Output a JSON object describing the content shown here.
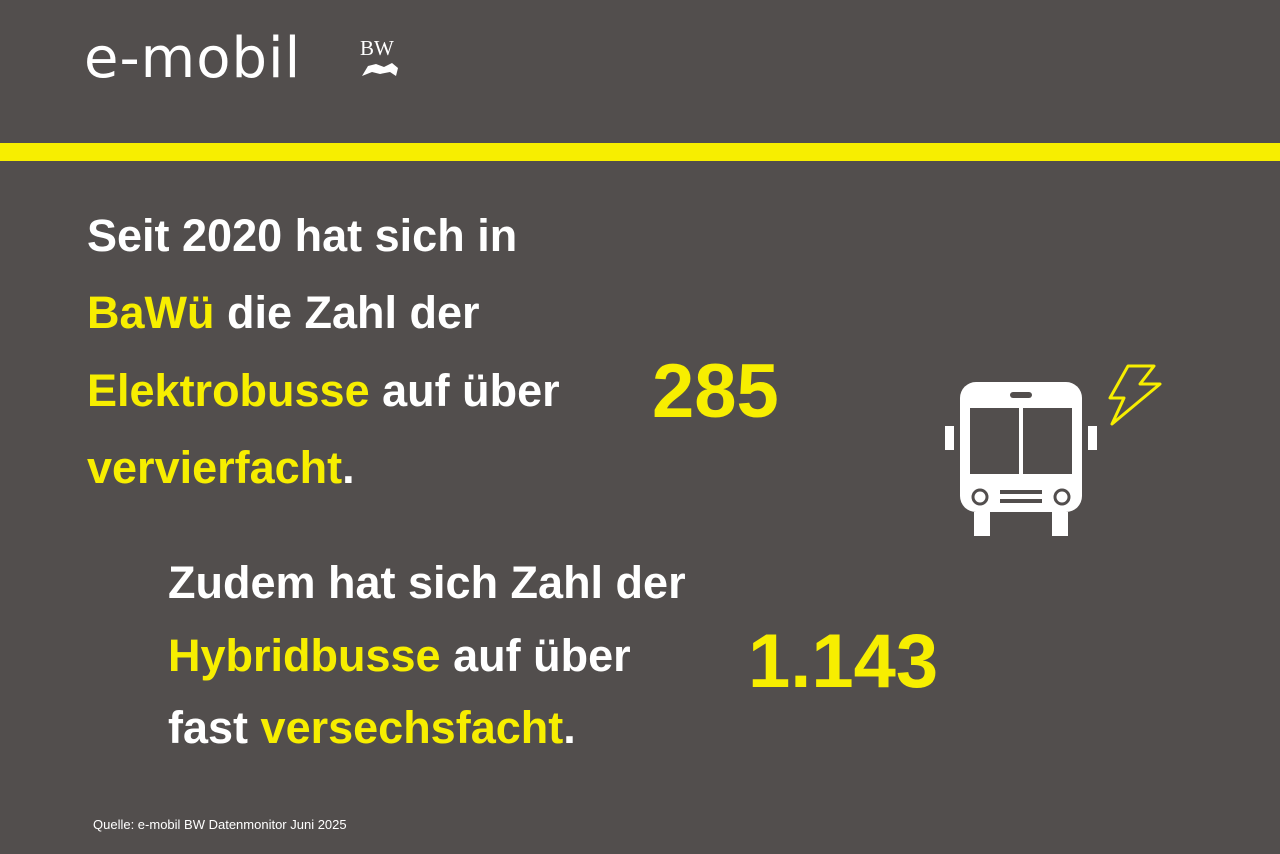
{
  "header": {
    "logo": "e-mobil",
    "logo_badge": "BW"
  },
  "statement_1": {
    "lines": [
      [
        "Seit 2020 hat sich in"
      ],
      [
        "BaWü",
        "die Zahl der"
      ],
      [
        "Elektrobusse",
        "auf über"
      ],
      [
        "vervierfacht",
        "."
      ]
    ],
    "number": "285"
  },
  "statement_2": {
    "lines": [
      [
        "Zudem hat sich Zahl der"
      ],
      [
        "Hybridbusse",
        "auf über"
      ],
      [
        "fast",
        "versechsfacht",
        "."
      ]
    ],
    "number": "1.143"
  },
  "source": "Quelle: e-mobil BW Datenmonitor Juni 2025"
}
